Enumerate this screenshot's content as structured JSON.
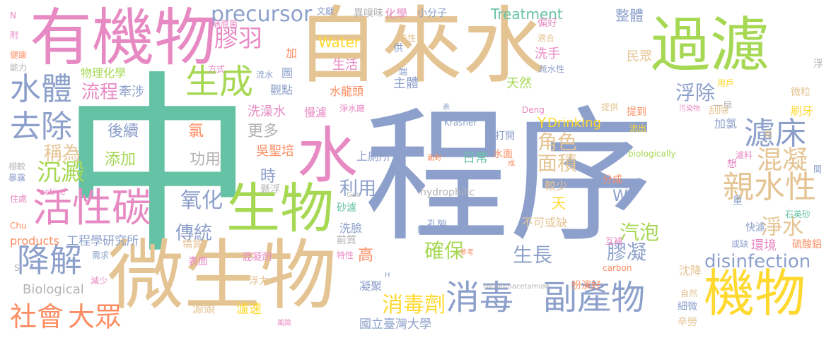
{
  "palette": {
    "teal": "#66c2a5",
    "orange": "#fc8d62",
    "blue": "#8da0cb",
    "pink": "#e78ac3",
    "green": "#a6d854",
    "yellow": "#ffd92f",
    "tan": "#e5c494",
    "gray": "#b3b3b3"
  },
  "words": [
    "中",
    "程序",
    "自來水",
    "微生物",
    "有機物",
    "過濾",
    "機物",
    "水",
    "生物",
    "活性碳",
    "消毒",
    "副產物",
    "親水性",
    "生成",
    "濾床",
    "降解",
    "水體",
    "去除",
    "膠羽",
    "precursor",
    "社會",
    "大眾",
    "混凝",
    "消毒劑",
    "淨水",
    "disinfection",
    "沉澱",
    "氧化",
    "利用",
    "確保",
    "生長",
    "面積",
    "角色",
    "汽泡",
    "膠凝",
    "浮除",
    "流程",
    "稱為",
    "傳統",
    "後續",
    "添加",
    "功用",
    "更多",
    "時",
    "Water",
    "生活",
    "Treatment",
    "Drinking",
    "Biological",
    "products",
    "工程學研究所",
    "國立臺灣大學",
    "整體",
    "水龍頭",
    "主體",
    "天然",
    "洗手",
    "民眾",
    "洗澡水",
    "觀點",
    "物理化學",
    "牽涉",
    "吳聖培",
    "慢濾",
    "氯",
    "Y",
    "W",
    "天",
    "較少",
    "不可或缺",
    "加氯",
    "刷牙",
    "微粒",
    "一早",
    "打開",
    "提到",
    "刮除",
    "日常",
    "水面",
    "上廁所",
    "懸浮",
    "砂濾",
    "洗臉",
    "前質",
    "高",
    "凝聚",
    "輕",
    "孔隙",
    "濾速",
    "源頭",
    "浮力",
    "混凝劑",
    "表面",
    "犒賞",
    "需求",
    "環境",
    "硫酸鋁",
    "沈降",
    "扮演好",
    "細微",
    "辛勞",
    "自然",
    "快濾",
    "重",
    "石英砂",
    "分成",
    "圖",
    "化學",
    "小分子",
    "供",
    "端",
    "適合",
    "偏好",
    "文獻",
    "異嗅味",
    "病原菌",
    "Krasner",
    "Deng",
    "biologically",
    "hydrophilic",
    "Gao",
    "carbon",
    "dichloroacetamide",
    "active",
    "Chu",
    "相較",
    "暴露",
    "住處",
    "減少",
    "健康",
    "附",
    "能力",
    "方式",
    "流水",
    "疏水性",
    "用戶",
    "提供",
    "污染物",
    "流出",
    "易",
    "濾料",
    "間",
    "想",
    "或缺",
    "互補",
    "特性",
    "風險",
    "參考",
    "面對",
    "成",
    "表",
    "淨水廠",
    "毒性",
    "N",
    "H",
    "S",
    "加",
    "浮"
  ]
}
